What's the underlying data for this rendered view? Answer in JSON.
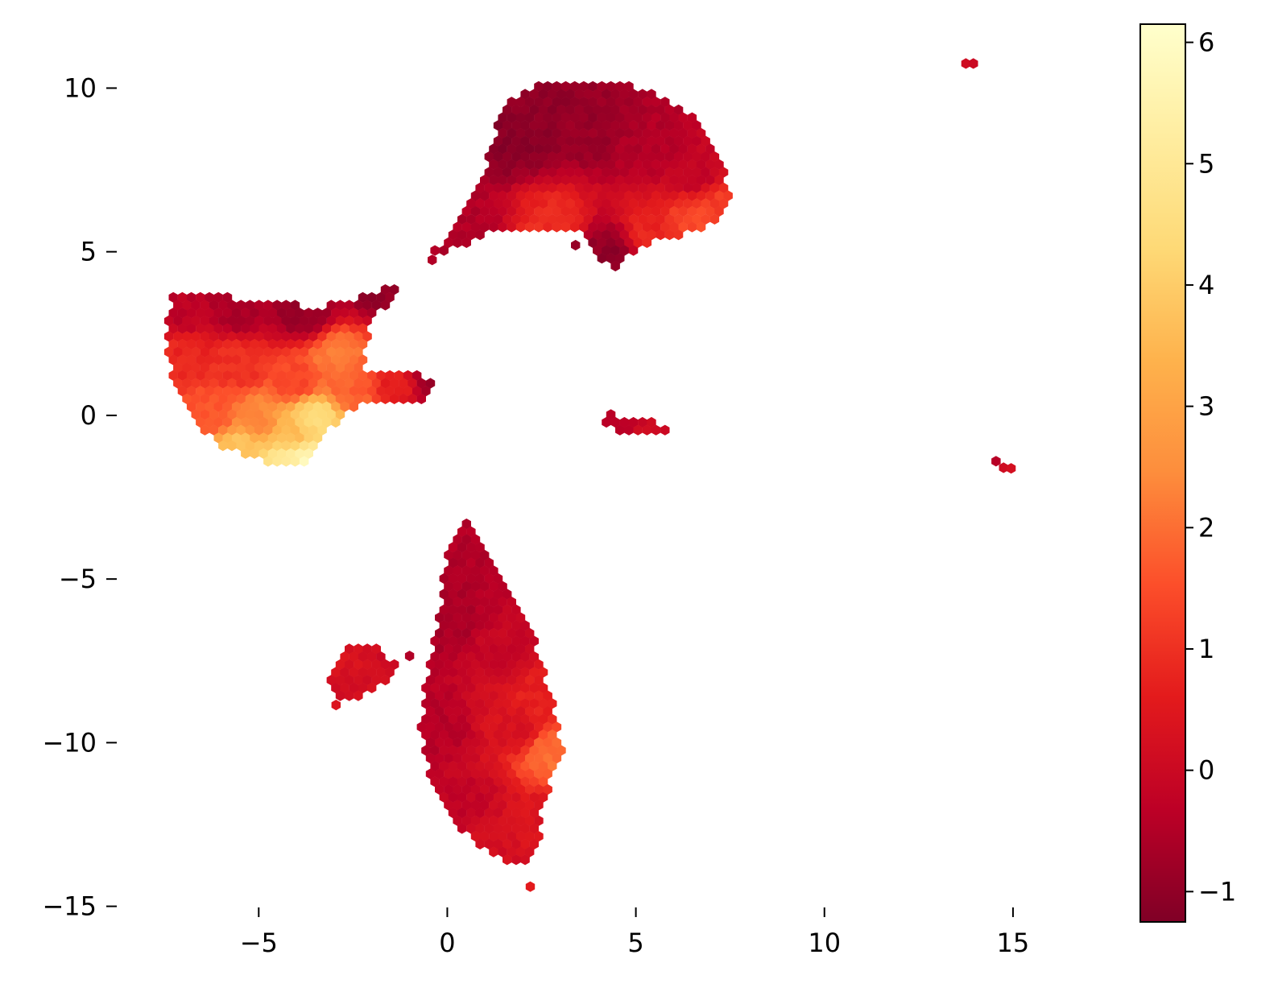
{
  "chart_data": {
    "type": "heatmap",
    "subtype": "hexbin",
    "title": "",
    "xlabel": "",
    "ylabel": "",
    "xlim": [
      -8.7,
      17.5
    ],
    "ylim": [
      -15.6,
      12.2
    ],
    "x_ticks": [
      -5,
      0,
      5,
      10,
      15
    ],
    "x_tick_labels": [
      "−5",
      "0",
      "5",
      "10",
      "15"
    ],
    "y_ticks": [
      10,
      5,
      0,
      -5,
      -10,
      -15
    ],
    "y_tick_labels": [
      "10",
      "5",
      "0",
      "−5",
      "−10",
      "−15"
    ],
    "grid": false,
    "spines": false,
    "colormap": "YlOrRd_r",
    "colormap_stops": [
      "#800026",
      "#bd0026",
      "#e31a1c",
      "#fc4e2a",
      "#fd8d3c",
      "#feb24c",
      "#fed976",
      "#ffeda0",
      "#ffffcc"
    ],
    "colorbar": {
      "placement": "right",
      "range": [
        -1.25,
        6.15
      ],
      "ticks": [
        -1,
        0,
        1,
        2,
        3,
        4,
        5,
        6
      ],
      "tick_labels": [
        "−1",
        "0",
        "1",
        "2",
        "3",
        "4",
        "5",
        "6"
      ]
    },
    "clusters": [
      {
        "polygon": [
          [
            1.5,
            9.6
          ],
          [
            2.5,
            10.2
          ],
          [
            4.8,
            10.2
          ],
          [
            6.5,
            9.2
          ],
          [
            7.2,
            8.0
          ],
          [
            7.6,
            6.6
          ],
          [
            7.0,
            5.8
          ],
          [
            6.0,
            5.4
          ],
          [
            5.2,
            5.2
          ],
          [
            4.5,
            4.5
          ],
          [
            4.0,
            4.8
          ],
          [
            3.5,
            5.6
          ],
          [
            2.5,
            5.6
          ],
          [
            1.2,
            5.6
          ],
          [
            0.6,
            5.3
          ],
          [
            -0.2,
            4.9
          ],
          [
            -0.5,
            4.8
          ],
          [
            0.0,
            5.6
          ],
          [
            0.6,
            6.4
          ],
          [
            1.0,
            7.6
          ]
        ],
        "values": [
          {
            "x": 1.6,
            "y": 8.5,
            "v": -1.1
          },
          {
            "x": 2.6,
            "y": 9.4,
            "v": -1.0
          },
          {
            "x": 3.8,
            "y": 8.8,
            "v": -0.9
          },
          {
            "x": 5.4,
            "y": 8.2,
            "v": -0.5
          },
          {
            "x": 6.6,
            "y": 7.4,
            "v": -0.2
          },
          {
            "x": 7.3,
            "y": 6.4,
            "v": 1.2
          },
          {
            "x": 6.6,
            "y": 5.9,
            "v": 1.4
          },
          {
            "x": 5.4,
            "y": 5.5,
            "v": 0.8
          },
          {
            "x": 2.8,
            "y": 5.8,
            "v": 0.9
          },
          {
            "x": 0.6,
            "y": 5.6,
            "v": -0.5
          },
          {
            "x": 4.3,
            "y": 5.0,
            "v": -1.0
          }
        ]
      },
      {
        "polygon": [
          [
            -7.3,
            3.7
          ],
          [
            -6.5,
            3.7
          ],
          [
            -5.0,
            3.5
          ],
          [
            -3.5,
            3.3
          ],
          [
            -2.5,
            3.5
          ],
          [
            -1.8,
            3.8
          ],
          [
            -1.2,
            4.0
          ],
          [
            -2.0,
            2.8
          ],
          [
            -2.3,
            1.4
          ],
          [
            -1.3,
            1.3
          ],
          [
            -0.4,
            1.2
          ],
          [
            -0.4,
            0.6
          ],
          [
            -1.0,
            0.3
          ],
          [
            -2.3,
            0.4
          ],
          [
            -2.8,
            0.0
          ],
          [
            -3.3,
            -0.8
          ],
          [
            -3.7,
            -1.6
          ],
          [
            -4.5,
            -1.6
          ],
          [
            -5.5,
            -1.2
          ],
          [
            -6.2,
            -0.8
          ],
          [
            -6.8,
            0.0
          ],
          [
            -7.3,
            1.0
          ],
          [
            -7.5,
            2.5
          ]
        ],
        "values": [
          {
            "x": -7.0,
            "y": 3.2,
            "v": -0.3
          },
          {
            "x": -5.5,
            "y": 3.2,
            "v": -0.6
          },
          {
            "x": -3.8,
            "y": 3.1,
            "v": -0.9
          },
          {
            "x": -1.6,
            "y": 3.7,
            "v": -1.0
          },
          {
            "x": -7.0,
            "y": 1.8,
            "v": 0.8
          },
          {
            "x": -5.5,
            "y": 1.5,
            "v": 1.0
          },
          {
            "x": -4.0,
            "y": 1.0,
            "v": 1.4
          },
          {
            "x": -2.9,
            "y": 1.8,
            "v": 2.2
          },
          {
            "x": -2.6,
            "y": 0.8,
            "v": 1.8
          },
          {
            "x": -1.2,
            "y": 0.9,
            "v": 0.7
          },
          {
            "x": -0.6,
            "y": 1.0,
            "v": -0.8
          },
          {
            "x": -6.2,
            "y": 0.0,
            "v": 1.6
          },
          {
            "x": -5.0,
            "y": -0.2,
            "v": 2.4
          },
          {
            "x": -4.2,
            "y": -0.6,
            "v": 3.6
          },
          {
            "x": -3.5,
            "y": 0.0,
            "v": 4.4
          },
          {
            "x": -5.5,
            "y": -1.0,
            "v": 3.8
          },
          {
            "x": -4.3,
            "y": -1.4,
            "v": 5.0
          },
          {
            "x": -3.8,
            "y": -1.5,
            "v": 5.8
          }
        ]
      },
      {
        "polygon": [
          [
            0.5,
            -3.3
          ],
          [
            1.2,
            -4.2
          ],
          [
            1.6,
            -5.3
          ],
          [
            2.2,
            -6.5
          ],
          [
            2.6,
            -7.8
          ],
          [
            2.9,
            -9.3
          ],
          [
            3.1,
            -10.4
          ],
          [
            2.8,
            -11.0
          ],
          [
            2.5,
            -12.2
          ],
          [
            2.4,
            -13.3
          ],
          [
            2.1,
            -13.8
          ],
          [
            1.5,
            -13.6
          ],
          [
            0.8,
            -13.1
          ],
          [
            0.1,
            -12.3
          ],
          [
            -0.5,
            -11.2
          ],
          [
            -0.7,
            -9.7
          ],
          [
            -0.6,
            -8.2
          ],
          [
            -0.3,
            -6.5
          ],
          [
            0.0,
            -4.3
          ]
        ],
        "values": [
          {
            "x": 0.4,
            "y": -4.0,
            "v": -0.5
          },
          {
            "x": 0.1,
            "y": -6.5,
            "v": -0.6
          },
          {
            "x": -0.3,
            "y": -9.5,
            "v": -0.4
          },
          {
            "x": 0.4,
            "y": -11.8,
            "v": -0.2
          },
          {
            "x": 1.3,
            "y": -13.2,
            "v": 0.2
          },
          {
            "x": 1.2,
            "y": -7.2,
            "v": -0.1
          },
          {
            "x": 1.8,
            "y": -9.5,
            "v": 0.3
          },
          {
            "x": 2.4,
            "y": -8.8,
            "v": 0.7
          },
          {
            "x": 2.8,
            "y": -10.3,
            "v": 2.0
          },
          {
            "x": 2.3,
            "y": -12.5,
            "v": 0.4
          }
        ]
      },
      {
        "polygon": [
          [
            -2.6,
            -7.0
          ],
          [
            -1.8,
            -7.0
          ],
          [
            -1.4,
            -7.6
          ],
          [
            -1.6,
            -8.2
          ],
          [
            -2.2,
            -8.6
          ],
          [
            -2.9,
            -8.8
          ],
          [
            -3.2,
            -8.2
          ],
          [
            -2.9,
            -7.5
          ]
        ],
        "values": [
          {
            "x": -2.6,
            "y": -7.6,
            "v": 0.3
          },
          {
            "x": -1.8,
            "y": -7.6,
            "v": 0.1
          },
          {
            "x": -2.8,
            "y": -8.4,
            "v": 0.2
          }
        ]
      },
      {
        "polygon": [
          [
            4.2,
            0.1
          ],
          [
            4.6,
            -0.1
          ],
          [
            5.3,
            -0.1
          ],
          [
            5.9,
            -0.4
          ],
          [
            6.0,
            -0.7
          ],
          [
            5.6,
            -0.6
          ],
          [
            5.0,
            -0.5
          ],
          [
            4.7,
            -0.6
          ],
          [
            4.4,
            -0.5
          ],
          [
            4.2,
            -0.2
          ]
        ],
        "values": [
          {
            "x": 4.6,
            "y": -0.2,
            "v": -0.2
          },
          {
            "x": 5.5,
            "y": -0.5,
            "v": 0.1
          }
        ]
      }
    ],
    "points": [
      {
        "x": -1.0,
        "y": -7.35,
        "v": -0.5
      },
      {
        "x": -2.95,
        "y": -8.85,
        "v": 0.4
      },
      {
        "x": 2.2,
        "y": -14.4,
        "v": 0.6
      },
      {
        "x": 3.4,
        "y": 5.2,
        "v": -0.9
      },
      {
        "x": -0.4,
        "y": 4.75,
        "v": -0.5
      },
      {
        "x": 13.75,
        "y": 10.75,
        "v": 0.1
      },
      {
        "x": 13.95,
        "y": 10.75,
        "v": 0.0
      },
      {
        "x": 14.55,
        "y": -1.4,
        "v": -0.4
      },
      {
        "x": 14.75,
        "y": -1.6,
        "v": 0.1
      },
      {
        "x": 14.95,
        "y": -1.62,
        "v": 0.2
      }
    ]
  }
}
